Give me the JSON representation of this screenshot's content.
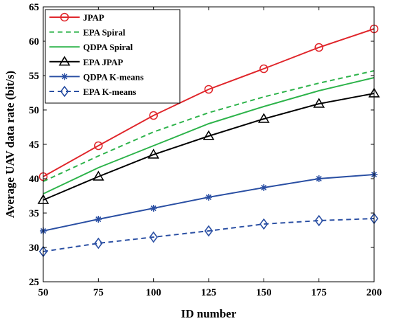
{
  "chart_data": {
    "type": "line",
    "xlabel": "ID number",
    "ylabel": "Average UAV data rate (bit/s)",
    "x": [
      50,
      75,
      100,
      125,
      150,
      175,
      200
    ],
    "xlim": [
      50,
      200
    ],
    "ylim": [
      25,
      65
    ],
    "xticks": [
      "50",
      "75",
      "100",
      "125",
      "150",
      "175",
      "200"
    ],
    "yticks": [
      "25",
      "30",
      "35",
      "40",
      "45",
      "50",
      "55",
      "60",
      "65"
    ],
    "grid": false,
    "legend_position": "top-left",
    "series": [
      {
        "name": "JPAP",
        "values": [
          40.3,
          44.8,
          49.2,
          53.0,
          56.0,
          59.1,
          61.8
        ],
        "color": "#e0262b",
        "dash": "solid",
        "marker": "circle"
      },
      {
        "name": "EPA Spiral",
        "values": [
          39.6,
          43.3,
          46.8,
          49.6,
          51.9,
          53.9,
          55.7
        ],
        "color": "#2db34a",
        "dash": "dashed",
        "marker": "none"
      },
      {
        "name": "QDPA Spiral",
        "values": [
          37.8,
          41.6,
          44.8,
          48.0,
          50.5,
          52.8,
          54.7
        ],
        "color": "#2db34a",
        "dash": "solid",
        "marker": "none"
      },
      {
        "name": "EPA JPAP",
        "values": [
          36.9,
          40.3,
          43.5,
          46.2,
          48.7,
          50.9,
          52.4
        ],
        "color": "#000000",
        "dash": "solid",
        "marker": "triangle"
      },
      {
        "name": "QDPA K-means",
        "values": [
          32.4,
          34.1,
          35.7,
          37.3,
          38.7,
          40.0,
          40.6
        ],
        "color": "#2a4fa3",
        "dash": "solid",
        "marker": "asterisk"
      },
      {
        "name": "EPA K-means",
        "values": [
          29.4,
          30.6,
          31.5,
          32.4,
          33.4,
          33.9,
          34.2
        ],
        "color": "#2a4fa3",
        "dash": "dashed",
        "marker": "diamond"
      }
    ]
  }
}
